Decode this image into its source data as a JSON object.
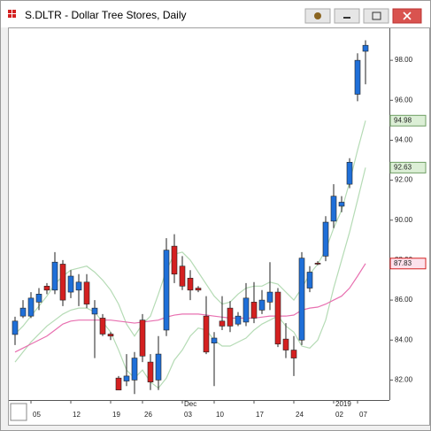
{
  "window_title": "S.DLTR - Dollar Tree Stores, Daily",
  "chart_data": {
    "type": "candlestick",
    "categories": [
      null,
      null,
      "05",
      null,
      null,
      null,
      null,
      "12",
      null,
      null,
      null,
      null,
      "19",
      null,
      null,
      null,
      "26",
      null,
      null,
      null,
      null,
      "03",
      null,
      null,
      null,
      "10",
      null,
      null,
      null,
      null,
      "17",
      null,
      null,
      null,
      null,
      "24",
      null,
      null,
      null,
      null,
      "02",
      null,
      null,
      "07",
      null
    ],
    "month_labels": [
      null,
      null,
      null,
      null,
      null,
      null,
      null,
      null,
      null,
      null,
      null,
      null,
      null,
      null,
      null,
      null,
      null,
      null,
      null,
      null,
      null,
      "Dec",
      null,
      null,
      null,
      null,
      null,
      null,
      null,
      null,
      null,
      null,
      null,
      null,
      null,
      null,
      null,
      null,
      null,
      null,
      "2019",
      null,
      null,
      null,
      null
    ],
    "open": [
      84.28,
      85.2,
      85.2,
      85.9,
      86.7,
      86.5,
      87.8,
      86.4,
      86.5,
      86.9,
      85.3,
      85.1,
      84.3,
      82.1,
      81.95,
      82.0,
      85.0,
      82.9,
      82.0,
      84.5,
      88.7,
      87.7,
      87.1,
      86.6,
      85.2,
      83.85,
      84.95,
      85.6,
      84.8,
      84.9,
      85.9,
      85.5,
      85.9,
      86.4,
      84.05,
      83.5,
      84.0,
      86.6,
      87.85,
      88.2,
      89.95,
      90.7,
      91.8,
      96.3,
      98.45
    ],
    "high": [
      85.17,
      86.0,
      86.4,
      86.6,
      86.85,
      88.4,
      88.0,
      87.5,
      87.3,
      87.3,
      86.0,
      85.3,
      84.4,
      82.2,
      83.3,
      83.4,
      85.3,
      83.3,
      84.2,
      89.1,
      89.3,
      88.2,
      87.5,
      86.7,
      86.2,
      84.4,
      86.2,
      85.95,
      85.4,
      86.85,
      86.9,
      86.5,
      87.9,
      86.6,
      84.85,
      84.2,
      88.4,
      87.7,
      87.95,
      90.2,
      91.8,
      91.2,
      93.1,
      98.35,
      99.0
    ],
    "low": [
      83.75,
      85.1,
      85.1,
      85.5,
      86.3,
      86.3,
      85.7,
      86.1,
      85.7,
      85.6,
      83.1,
      84.2,
      84.0,
      81.5,
      81.7,
      81.3,
      82.9,
      81.5,
      81.5,
      84.2,
      86.85,
      86.5,
      86.0,
      86.4,
      83.3,
      81.7,
      84.5,
      84.4,
      84.7,
      84.7,
      84.85,
      85.3,
      85.5,
      83.65,
      83.1,
      82.2,
      83.75,
      86.4,
      87.75,
      87.95,
      89.6,
      90.4,
      91.6,
      95.95,
      96.8
    ],
    "close": [
      84.95,
      85.6,
      86.1,
      86.3,
      86.5,
      87.9,
      86.0,
      87.2,
      86.9,
      85.8,
      85.6,
      84.3,
      84.2,
      81.5,
      82.2,
      83.1,
      83.2,
      81.9,
      83.3,
      88.5,
      87.3,
      86.7,
      86.5,
      86.5,
      83.4,
      84.1,
      84.7,
      84.7,
      85.2,
      86.1,
      85.1,
      86.0,
      86.4,
      83.8,
      83.5,
      83.1,
      88.1,
      87.4,
      87.8,
      89.9,
      91.2,
      90.9,
      92.9,
      98.0,
      98.75
    ],
    "up_color": "#1f6fd8",
    "down_color": "#d42020",
    "overlays": [
      {
        "color": "#b5dbb5",
        "label_fill": "#dcefd6",
        "label_border": "#6f9f64",
        "values": [
          84.3,
          84.7,
          85.2,
          85.7,
          86.2,
          86.8,
          87.2,
          87.5,
          87.6,
          87.7,
          87.4,
          87.0,
          86.5,
          85.8,
          84.8,
          84.2,
          84.8,
          85.2,
          86.3,
          87.5,
          88.3,
          88.4,
          88.0,
          87.4,
          86.8,
          86.2,
          85.8,
          85.9,
          86.3,
          86.6,
          86.7,
          86.7,
          86.9,
          86.8,
          86.4,
          86.0,
          86.6,
          87.3,
          87.8,
          88.5,
          89.6,
          90.5,
          91.9,
          93.5,
          94.98
        ]
      },
      {
        "color": "#b5dbb5",
        "label_fill": "#dcefd6",
        "label_border": "#6f9f64",
        "values": [
          82.9,
          83.4,
          83.9,
          84.3,
          84.7,
          85.0,
          85.3,
          85.5,
          85.6,
          85.6,
          85.4,
          84.9,
          84.4,
          83.5,
          82.5,
          82.1,
          82.5,
          81.9,
          81.6,
          82.1,
          83.0,
          83.5,
          84.2,
          84.6,
          84.5,
          84.0,
          83.7,
          83.7,
          83.9,
          84.1,
          84.5,
          84.8,
          85.0,
          85.2,
          84.7,
          84.4,
          83.7,
          83.6,
          84.0,
          85.0,
          86.6,
          88.0,
          89.4,
          91.0,
          92.63
        ]
      },
      {
        "color": "#e870b0",
        "label_fill": "#fde2ec",
        "label_border": "#d42020",
        "values": [
          83.4,
          83.6,
          83.8,
          84.0,
          84.2,
          84.5,
          84.8,
          84.95,
          85.0,
          85.0,
          85.0,
          85.0,
          85.0,
          84.95,
          84.9,
          84.85,
          84.9,
          84.95,
          85.0,
          85.15,
          85.25,
          85.3,
          85.3,
          85.3,
          85.25,
          85.2,
          85.15,
          85.1,
          85.1,
          85.1,
          85.1,
          85.15,
          85.2,
          85.2,
          85.2,
          85.25,
          85.5,
          85.6,
          85.65,
          85.8,
          86.0,
          86.2,
          86.6,
          87.2,
          87.83
        ]
      }
    ],
    "ylim": [
      81.0,
      99.6
    ],
    "yticks": [
      {
        "value": 82,
        "label": "82.00"
      },
      {
        "value": 84,
        "label": "84.00"
      },
      {
        "value": 86,
        "label": "86.00"
      },
      {
        "value": 88,
        "label": "88.00"
      },
      {
        "value": 90,
        "label": "90.00"
      },
      {
        "value": 92,
        "label": "92.00"
      },
      {
        "value": 94,
        "label": "94.00"
      },
      {
        "value": 96,
        "label": "96.00"
      },
      {
        "value": 98,
        "label": "98.00"
      }
    ],
    "grid": false
  }
}
